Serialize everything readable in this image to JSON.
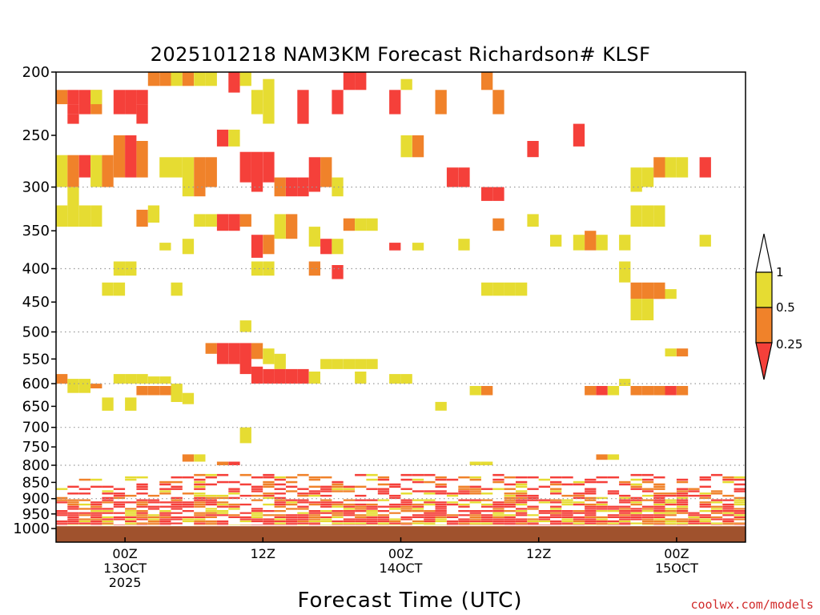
{
  "chart_data": {
    "type": "heatmap",
    "title": "2025101218 NAM3KM Forecast Richardson# KLSF",
    "xlabel": "Forecast Time (UTC)",
    "ylabel": "",
    "y_scale": "log-pressure (inverted)",
    "ylim": [
      1000,
      200
    ],
    "yticks": [
      200,
      250,
      300,
      350,
      400,
      450,
      500,
      550,
      600,
      650,
      700,
      750,
      800,
      850,
      900,
      950,
      1000
    ],
    "grid_levels": [
      300,
      400,
      500,
      600,
      700,
      800,
      900
    ],
    "xticks": [
      {
        "hour": 6,
        "labels": [
          "00Z",
          "13OCT",
          "2025"
        ]
      },
      {
        "hour": 18,
        "labels": [
          "12Z"
        ]
      },
      {
        "hour": 30,
        "labels": [
          "00Z",
          "14OCT"
        ]
      },
      {
        "hour": 42,
        "labels": [
          "12Z"
        ]
      },
      {
        "hour": 54,
        "labels": [
          "00Z",
          "15OCT"
        ]
      }
    ],
    "x_range_forecast_hours": [
      0,
      60
    ],
    "colorbar": {
      "levels": [
        0.25,
        0.5,
        1
      ],
      "labels": [
        "1",
        "0.5",
        "0.25"
      ],
      "colors": {
        "lt_0_25": "#f5403a",
        "0_25_to_0_5": "#f0822a",
        "0_5_to_1": "#e6dc32",
        "gt_1": "#ffffff"
      }
    },
    "bins": [
      "lt_0_25",
      "0_25_to_0_5",
      "0_5_to_1"
    ],
    "cells": [
      [
        0,
        213,
        224,
        1
      ],
      [
        1,
        213,
        224,
        0
      ],
      [
        1,
        224,
        232,
        0
      ],
      [
        1,
        232,
        240,
        0
      ],
      [
        2,
        213,
        232,
        0
      ],
      [
        3,
        213,
        232,
        1
      ],
      [
        3,
        213,
        224,
        2
      ],
      [
        5,
        213,
        232,
        0
      ],
      [
        6,
        213,
        232,
        0
      ],
      [
        7,
        213,
        224,
        0
      ],
      [
        7,
        224,
        240,
        0
      ],
      [
        8,
        200,
        210,
        1
      ],
      [
        9,
        200,
        210,
        1
      ],
      [
        10,
        200,
        210,
        2
      ],
      [
        11,
        200,
        210,
        1
      ],
      [
        12,
        200,
        210,
        2
      ],
      [
        13,
        200,
        210,
        2
      ],
      [
        15,
        200,
        215,
        0
      ],
      [
        16,
        200,
        210,
        2
      ],
      [
        17,
        213,
        232,
        2
      ],
      [
        18,
        205,
        240,
        2
      ],
      [
        21,
        213,
        240,
        0
      ],
      [
        24,
        213,
        232,
        0
      ],
      [
        25,
        200,
        213,
        0
      ],
      [
        26,
        200,
        213,
        0
      ],
      [
        29,
        213,
        232,
        0
      ],
      [
        30,
        205,
        213,
        2
      ],
      [
        33,
        213,
        232,
        1
      ],
      [
        37,
        200,
        213,
        1
      ],
      [
        38,
        213,
        232,
        1
      ],
      [
        0,
        268,
        300,
        2
      ],
      [
        1,
        268,
        300,
        1
      ],
      [
        2,
        268,
        290,
        0
      ],
      [
        3,
        268,
        300,
        2
      ],
      [
        4,
        268,
        300,
        1
      ],
      [
        5,
        250,
        290,
        1
      ],
      [
        6,
        250,
        290,
        0
      ],
      [
        7,
        255,
        290,
        1
      ],
      [
        9,
        270,
        290,
        2
      ],
      [
        10,
        270,
        290,
        2
      ],
      [
        11,
        270,
        310,
        2
      ],
      [
        12,
        270,
        310,
        1
      ],
      [
        13,
        270,
        300,
        1
      ],
      [
        14,
        245,
        260,
        0
      ],
      [
        15,
        245,
        260,
        2
      ],
      [
        16,
        265,
        295,
        0
      ],
      [
        17,
        265,
        305,
        0
      ],
      [
        18,
        265,
        295,
        0
      ],
      [
        19,
        290,
        310,
        1
      ],
      [
        20,
        290,
        310,
        0
      ],
      [
        21,
        290,
        310,
        0
      ],
      [
        22,
        270,
        305,
        0
      ],
      [
        23,
        270,
        300,
        1
      ],
      [
        24,
        290,
        310,
        2
      ],
      [
        30,
        250,
        270,
        2
      ],
      [
        31,
        250,
        270,
        1
      ],
      [
        34,
        280,
        300,
        0
      ],
      [
        35,
        280,
        300,
        0
      ],
      [
        37,
        300,
        315,
        0
      ],
      [
        38,
        300,
        315,
        0
      ],
      [
        41,
        255,
        270,
        0
      ],
      [
        45,
        240,
        260,
        0
      ],
      [
        50,
        280,
        305,
        2
      ],
      [
        51,
        280,
        300,
        2
      ],
      [
        52,
        270,
        290,
        1
      ],
      [
        53,
        270,
        290,
        2
      ],
      [
        54,
        270,
        290,
        2
      ],
      [
        56,
        270,
        290,
        0
      ],
      [
        0,
        320,
        345,
        2
      ],
      [
        1,
        300,
        345,
        2
      ],
      [
        2,
        320,
        345,
        2
      ],
      [
        3,
        320,
        345,
        2
      ],
      [
        7,
        325,
        345,
        1
      ],
      [
        8,
        320,
        340,
        2
      ],
      [
        9,
        365,
        375,
        2
      ],
      [
        11,
        360,
        380,
        2
      ],
      [
        12,
        330,
        345,
        2
      ],
      [
        13,
        330,
        345,
        2
      ],
      [
        14,
        330,
        350,
        0
      ],
      [
        15,
        330,
        350,
        0
      ],
      [
        16,
        330,
        345,
        1
      ],
      [
        17,
        355,
        385,
        0
      ],
      [
        18,
        355,
        380,
        1
      ],
      [
        19,
        330,
        360,
        2
      ],
      [
        20,
        330,
        360,
        1
      ],
      [
        22,
        345,
        370,
        2
      ],
      [
        23,
        360,
        380,
        0
      ],
      [
        24,
        360,
        380,
        2
      ],
      [
        25,
        335,
        350,
        1
      ],
      [
        26,
        335,
        350,
        2
      ],
      [
        27,
        335,
        350,
        2
      ],
      [
        29,
        365,
        375,
        0
      ],
      [
        31,
        365,
        375,
        2
      ],
      [
        35,
        360,
        375,
        2
      ],
      [
        38,
        335,
        350,
        1
      ],
      [
        41,
        330,
        345,
        2
      ],
      [
        43,
        355,
        370,
        2
      ],
      [
        45,
        355,
        375,
        2
      ],
      [
        46,
        350,
        375,
        1
      ],
      [
        47,
        355,
        375,
        2
      ],
      [
        49,
        355,
        375,
        2
      ],
      [
        50,
        320,
        345,
        2
      ],
      [
        51,
        320,
        345,
        2
      ],
      [
        52,
        320,
        345,
        2
      ],
      [
        56,
        355,
        370,
        2
      ],
      [
        5,
        390,
        410,
        2
      ],
      [
        6,
        390,
        410,
        2
      ],
      [
        4,
        420,
        440,
        2
      ],
      [
        5,
        420,
        440,
        2
      ],
      [
        10,
        420,
        440,
        2
      ],
      [
        17,
        390,
        410,
        2
      ],
      [
        18,
        390,
        410,
        2
      ],
      [
        22,
        390,
        410,
        1
      ],
      [
        24,
        395,
        415,
        0
      ],
      [
        37,
        420,
        440,
        2
      ],
      [
        38,
        420,
        440,
        2
      ],
      [
        39,
        420,
        440,
        2
      ],
      [
        40,
        420,
        440,
        2
      ],
      [
        49,
        390,
        420,
        2
      ],
      [
        50,
        420,
        445,
        1
      ],
      [
        51,
        420,
        445,
        1
      ],
      [
        52,
        420,
        445,
        1
      ],
      [
        50,
        445,
        480,
        2
      ],
      [
        51,
        445,
        480,
        2
      ],
      [
        53,
        430,
        445,
        2
      ],
      [
        16,
        480,
        500,
        2
      ],
      [
        13,
        520,
        540,
        1
      ],
      [
        14,
        520,
        560,
        0
      ],
      [
        15,
        520,
        560,
        0
      ],
      [
        16,
        520,
        580,
        0
      ],
      [
        17,
        520,
        550,
        1
      ],
      [
        18,
        530,
        560,
        2
      ],
      [
        19,
        540,
        570,
        2
      ],
      [
        17,
        565,
        600,
        0
      ],
      [
        18,
        570,
        600,
        0
      ],
      [
        19,
        570,
        600,
        0
      ],
      [
        20,
        570,
        600,
        0
      ],
      [
        21,
        570,
        600,
        0
      ],
      [
        22,
        575,
        600,
        2
      ],
      [
        23,
        550,
        570,
        2
      ],
      [
        24,
        550,
        570,
        2
      ],
      [
        25,
        550,
        570,
        2
      ],
      [
        26,
        550,
        570,
        2
      ],
      [
        27,
        550,
        570,
        2
      ],
      [
        26,
        575,
        600,
        2
      ],
      [
        29,
        580,
        600,
        2
      ],
      [
        30,
        580,
        600,
        2
      ],
      [
        0,
        580,
        600,
        1
      ],
      [
        1,
        590,
        620,
        2
      ],
      [
        2,
        590,
        620,
        2
      ],
      [
        3,
        600,
        610,
        1
      ],
      [
        5,
        580,
        600,
        2
      ],
      [
        6,
        580,
        600,
        2
      ],
      [
        7,
        580,
        600,
        2
      ],
      [
        8,
        585,
        600,
        2
      ],
      [
        9,
        585,
        600,
        2
      ],
      [
        7,
        605,
        625,
        1
      ],
      [
        8,
        605,
        625,
        1
      ],
      [
        9,
        605,
        625,
        1
      ],
      [
        10,
        600,
        640,
        2
      ],
      [
        11,
        620,
        645,
        2
      ],
      [
        36,
        605,
        625,
        2
      ],
      [
        37,
        605,
        625,
        1
      ],
      [
        46,
        605,
        625,
        1
      ],
      [
        47,
        605,
        625,
        0
      ],
      [
        48,
        605,
        625,
        2
      ],
      [
        50,
        605,
        625,
        1
      ],
      [
        51,
        605,
        625,
        1
      ],
      [
        52,
        605,
        625,
        1
      ],
      [
        53,
        605,
        625,
        0
      ],
      [
        54,
        605,
        625,
        1
      ],
      [
        53,
        530,
        545,
        2
      ],
      [
        54,
        530,
        545,
        1
      ],
      [
        4,
        630,
        660,
        2
      ],
      [
        6,
        630,
        660,
        2
      ],
      [
        33,
        640,
        660,
        2
      ],
      [
        49,
        590,
        605,
        2
      ],
      [
        16,
        700,
        740,
        2
      ],
      [
        11,
        770,
        790,
        1
      ],
      [
        12,
        770,
        790,
        2
      ],
      [
        14,
        790,
        800,
        1
      ],
      [
        15,
        790,
        800,
        0
      ],
      [
        36,
        790,
        800,
        2
      ],
      [
        37,
        790,
        800,
        2
      ],
      [
        47,
        770,
        785,
        1
      ],
      [
        48,
        770,
        785,
        2
      ]
    ],
    "low_level_note": "Dense mix of all three bins between ~820 and 990 hPa throughout the period; shallow surface layer (brown) below ~990 hPa",
    "surface_color": "#a0522d"
  },
  "credit": "coolwx.com/models"
}
